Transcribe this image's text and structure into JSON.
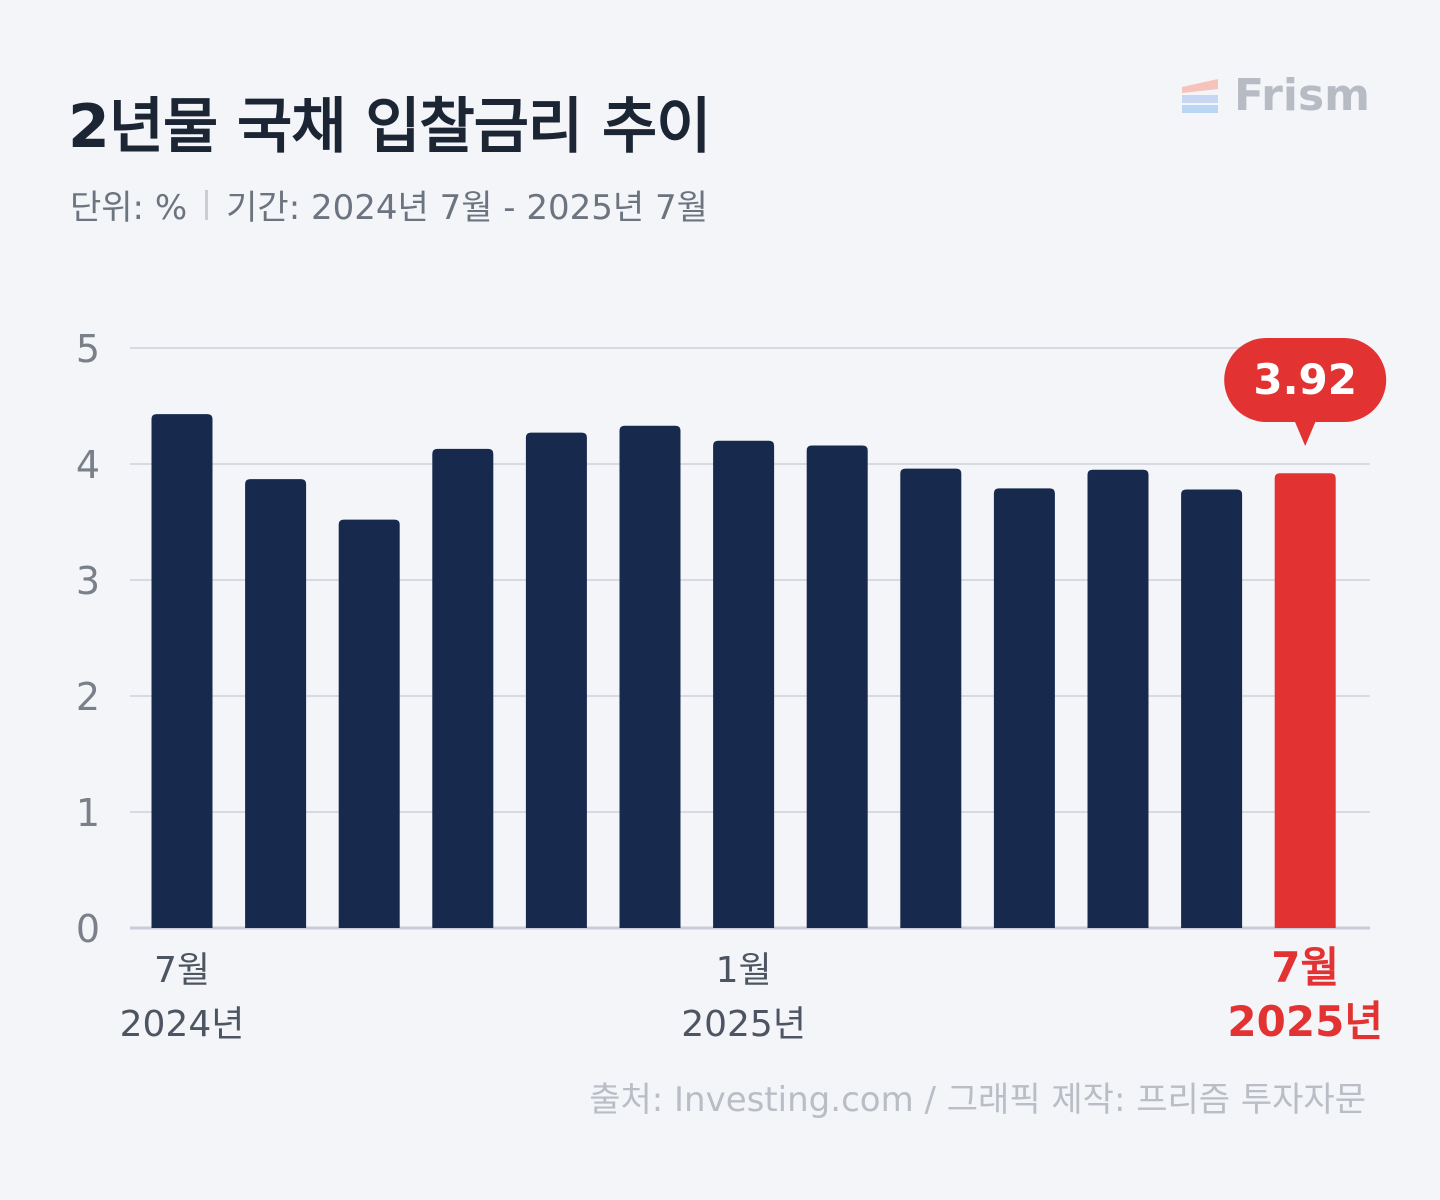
{
  "title": "2년물 국채 입찰금리 추이",
  "subtitle": {
    "unit": "단위: %",
    "period": "기간: 2024년 7월 - 2025년 7월"
  },
  "brand": {
    "name": "Frism",
    "logo_icon": "frism-stripes-icon"
  },
  "colors": {
    "bar": "#172a4e",
    "highlight": "#e23232",
    "grid": "#d7dbe1",
    "axis": "#c9ccd8"
  },
  "source": "출처: Investing.com  / 그래픽 제작: 프리즘 투자자문",
  "chart_data": {
    "type": "bar",
    "title": "2년물 국채 입찰금리 추이",
    "ylabel": "",
    "xlabel": "",
    "ylim": [
      0,
      5
    ],
    "yticks": [
      0,
      1,
      2,
      3,
      4,
      5
    ],
    "grid": true,
    "categories": [
      "2024-07",
      "2024-08",
      "2024-09",
      "2024-10",
      "2024-11",
      "2024-12",
      "2025-01",
      "2025-02",
      "2025-03",
      "2025-04",
      "2025-05",
      "2025-06",
      "2025-07"
    ],
    "values": [
      4.43,
      3.87,
      3.52,
      4.13,
      4.27,
      4.33,
      4.2,
      4.16,
      3.96,
      3.79,
      3.95,
      3.78,
      3.92
    ],
    "highlight_index": 12,
    "highlight_label": "3.92",
    "x_tick_labels": [
      {
        "index": 0,
        "month": "7월",
        "year": "2024년"
      },
      {
        "index": 6,
        "month": "1월",
        "year": "2025년"
      },
      {
        "index": 12,
        "month": "7월",
        "year": "2025년"
      }
    ]
  }
}
